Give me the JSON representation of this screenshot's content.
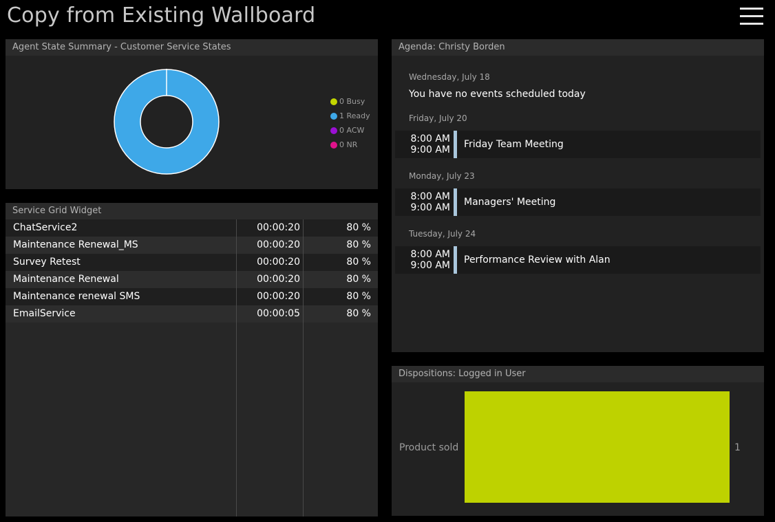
{
  "page": {
    "title": "Copy from Existing Wallboard"
  },
  "agent_state": {
    "header": "Agent State Summary - Customer Service States",
    "legend": [
      {
        "label": "0 Busy",
        "color": "#c3d600"
      },
      {
        "label": "1 Ready",
        "color": "#3ea8e8"
      },
      {
        "label": "0 ACW",
        "color": "#9b10d4"
      },
      {
        "label": "0 NR",
        "color": "#e0128b"
      }
    ],
    "donut": {
      "busy": 0,
      "ready": 1,
      "acw": 0,
      "nr": 0,
      "color": "#3ea8e8"
    }
  },
  "service_grid": {
    "header": "Service Grid Widget",
    "rows": [
      {
        "name": "ChatService2",
        "time": "00:00:20",
        "pct": "80 %"
      },
      {
        "name": "Maintenance Renewal_MS",
        "time": "00:00:20",
        "pct": "80 %"
      },
      {
        "name": "Survey Retest",
        "time": "00:00:20",
        "pct": "80 %"
      },
      {
        "name": "Maintenance Renewal",
        "time": "00:00:20",
        "pct": "80 %"
      },
      {
        "name": "Maintenance renewal SMS",
        "time": "00:00:20",
        "pct": "80 %"
      },
      {
        "name": "EmailService",
        "time": "00:00:05",
        "pct": "80 %"
      }
    ]
  },
  "agenda": {
    "header": "Agenda: Christy Borden",
    "days": [
      {
        "date": "Wednesday, July 18",
        "none_text": "You have no events scheduled today"
      },
      {
        "date": "Friday, July 20",
        "event": {
          "start": "8:00 AM",
          "end": "9:00 AM",
          "title": "Friday Team Meeting"
        }
      },
      {
        "date": "Monday, July 23",
        "event": {
          "start": "8:00 AM",
          "end": "9:00 AM",
          "title": "Managers' Meeting"
        }
      },
      {
        "date": "Tuesday, July 24",
        "event": {
          "start": "8:00 AM",
          "end": "9:00 AM",
          "title": "Performance Review with Alan"
        }
      }
    ]
  },
  "dispositions": {
    "header": "Dispositions: Logged in User",
    "bar_color": "#bed200"
  },
  "chart_data": {
    "type": "bar",
    "title": "",
    "categories": [
      "Product sold"
    ],
    "values": [
      1
    ],
    "xlabel": "",
    "ylabel": "",
    "orientation": "horizontal",
    "xlim": [
      0,
      1
    ],
    "grid": false
  }
}
